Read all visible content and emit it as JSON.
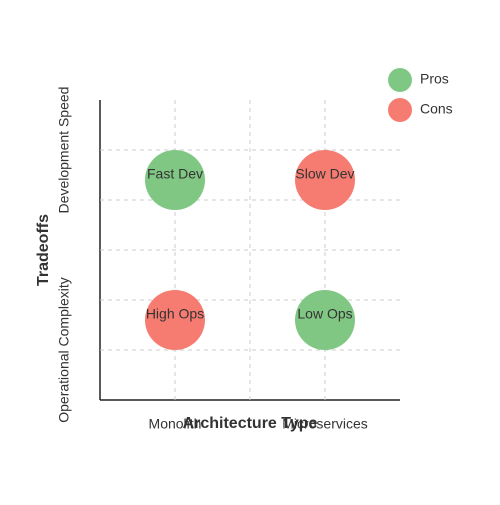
{
  "chart_data": {
    "type": "scatter",
    "xlabel": "Architecture Type",
    "ylabel": "Tradeoffs",
    "xlim": [
      0,
      4
    ],
    "ylim": [
      0,
      6
    ],
    "xticks": [
      {
        "value": 1,
        "label": "Monolith"
      },
      {
        "value": 3,
        "label": "Microservices"
      }
    ],
    "yticks": [
      {
        "value": 1,
        "label": "Operational Complexity"
      },
      {
        "value": 5,
        "label": "Development Speed"
      }
    ],
    "x_grid": [
      1,
      2,
      3
    ],
    "y_grid": [
      1,
      2,
      3,
      4,
      5
    ],
    "grid": true,
    "legend": "upper right",
    "series": [
      {
        "name": "Pros",
        "color": "#81c784",
        "x": [
          1,
          3
        ],
        "values": [
          4.4,
          1.6
        ],
        "point_labels": [
          "Fast Dev",
          "Low Ops"
        ]
      },
      {
        "name": "Cons",
        "color": "#f67c72",
        "x": [
          3,
          1
        ],
        "values": [
          4.4,
          1.6
        ],
        "point_labels": [
          "Slow Dev",
          "High Ops"
        ]
      }
    ]
  }
}
